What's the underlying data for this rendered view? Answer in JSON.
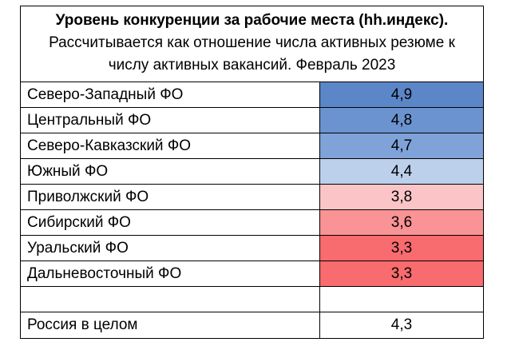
{
  "chart_data": {
    "type": "table",
    "title": "Уровень конкуренции за рабочие места (hh.индекс).",
    "subtitle_lines": [
      "Рассчитывается как отношение числа активных резюме к",
      "числу активных вакансий. Февраль 2023"
    ],
    "rows": [
      {
        "label": "Северо-Западный ФО",
        "value": "4,9",
        "color": "#5b87c8"
      },
      {
        "label": "Центральный ФО",
        "value": "4,8",
        "color": "#6b93cf"
      },
      {
        "label": "Северо-Кавказский ФО",
        "value": "4,7",
        "color": "#7fa3d8"
      },
      {
        "label": "Южный ФО",
        "value": "4,4",
        "color": "#bcd0ec"
      },
      {
        "label": "Приволжский ФО",
        "value": "3,8",
        "color": "#fbc5c7"
      },
      {
        "label": "Сибирский ФО",
        "value": "3,6",
        "color": "#f99395"
      },
      {
        "label": "Уральский ФО",
        "value": "3,3",
        "color": "#f86b6e"
      },
      {
        "label": "Дальневосточный ФО",
        "value": "3,3",
        "color": "#f86b6e"
      },
      {
        "label": "",
        "value": "",
        "color": "#ffffff"
      },
      {
        "label": "Россия в целом",
        "value": "4,3",
        "color": "#ffffff"
      }
    ]
  }
}
